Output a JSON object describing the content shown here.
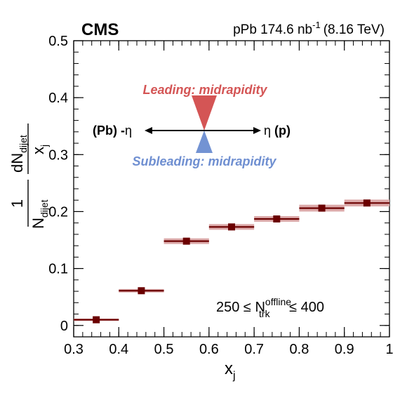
{
  "header": {
    "experiment": "CMS",
    "system": "pPb 174.6 nb",
    "system_sup": "-1",
    "energy": "(8.16 TeV)"
  },
  "legend": {
    "leading": "Leading: midrapidity",
    "subleading": "Subleading: midrapidity",
    "left_dir_a": "(Pb) -",
    "left_dir_b": "η",
    "right_dir_a": "η ",
    "right_dir_b": "(p)",
    "leading_color": "#d45555",
    "subleading_color": "#6f8fd1"
  },
  "cut": {
    "prefix": "250 ≤ N",
    "sup": "offline",
    "sub": "trk",
    "suffix": " ≤ 400"
  },
  "axes": {
    "x_main": "x",
    "x_sub": "j",
    "y_one": "1",
    "y_den_main": "N",
    "y_den_sub": "dijet",
    "y_num_main": "dN",
    "y_num_sub": "dijet",
    "y_numden_main": "x",
    "y_numden_sub": "j"
  },
  "chart_data": {
    "type": "scatter",
    "x_bin_edges": [
      0.3,
      0.4,
      0.5,
      0.6,
      0.7,
      0.8,
      0.9,
      1.0
    ],
    "x": [
      0.35,
      0.45,
      0.55,
      0.65,
      0.75,
      0.85,
      0.95
    ],
    "y": [
      0.01,
      0.061,
      0.148,
      0.173,
      0.187,
      0.206,
      0.215
    ],
    "sys_unc": [
      0.002,
      0.003,
      0.005,
      0.005,
      0.005,
      0.006,
      0.006
    ],
    "xlim": [
      0.3,
      1.0
    ],
    "ylim": [
      -0.02,
      0.5
    ],
    "x_ticks": [
      "0.3",
      "0.4",
      "0.5",
      "0.6",
      "0.7",
      "0.8",
      "0.9",
      "1"
    ],
    "y_ticks": [
      "0",
      "0.1",
      "0.2",
      "0.3",
      "0.4",
      "0.5"
    ],
    "marker_color": "#6b0000",
    "band_color": "#dcaaaa"
  }
}
